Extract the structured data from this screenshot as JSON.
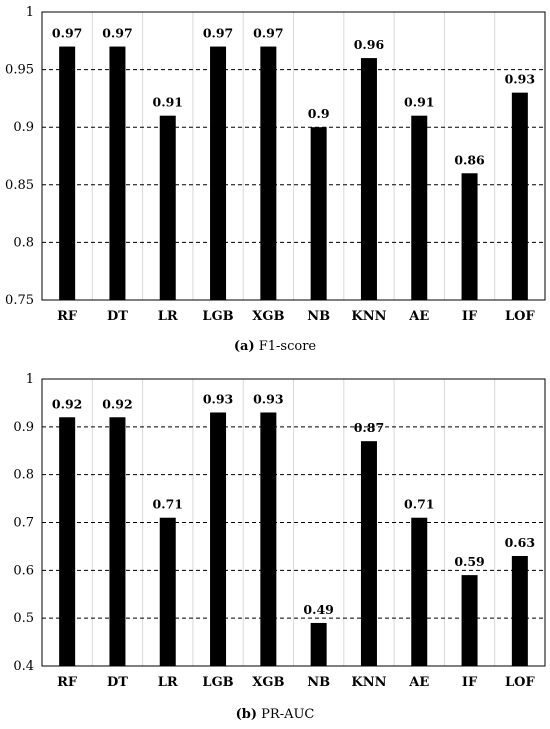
{
  "chart_data": [
    {
      "type": "bar",
      "categories": [
        "RF",
        "DT",
        "LR",
        "LGB",
        "XGB",
        "NB",
        "KNN",
        "AE",
        "IF",
        "LOF"
      ],
      "values": [
        0.97,
        0.97,
        0.91,
        0.97,
        0.97,
        0.9,
        0.96,
        0.91,
        0.86,
        0.93
      ],
      "data_labels": [
        "0.97",
        "0.97",
        "0.91",
        "0.97",
        "0.97",
        "0.9",
        "0.96",
        "0.91",
        "0.86",
        "0.93"
      ],
      "ylim": [
        0.75,
        1
      ],
      "yticks": [
        0.75,
        0.8,
        0.85,
        0.9,
        0.95,
        1
      ],
      "ytick_labels": [
        "0.75",
        "0.8",
        "0.85",
        "0.9",
        "0.95",
        "1"
      ],
      "grid": "horizontal dashed major, vertical light",
      "bar_color": "#000000",
      "caption_letter": "(a)",
      "caption_text": "F1-score"
    },
    {
      "type": "bar",
      "categories": [
        "RF",
        "DT",
        "LR",
        "LGB",
        "XGB",
        "NB",
        "KNN",
        "AE",
        "IF",
        "LOF"
      ],
      "values": [
        0.92,
        0.92,
        0.71,
        0.93,
        0.93,
        0.49,
        0.87,
        0.71,
        0.59,
        0.63
      ],
      "data_labels": [
        "0.92",
        "0.92",
        "0.71",
        "0.93",
        "0.93",
        "0.49",
        "0.87",
        "0.71",
        "0.59",
        "0.63"
      ],
      "ylim": [
        0.4,
        1
      ],
      "yticks": [
        0.4,
        0.5,
        0.6,
        0.7,
        0.8,
        0.9,
        1
      ],
      "ytick_labels": [
        "0.4",
        "0.5",
        "0.6",
        "0.7",
        "0.8",
        "0.9",
        "1"
      ],
      "grid": "horizontal dashed major, vertical light",
      "bar_color": "#000000",
      "caption_letter": "(b)",
      "caption_text": "PR-AUC"
    }
  ]
}
